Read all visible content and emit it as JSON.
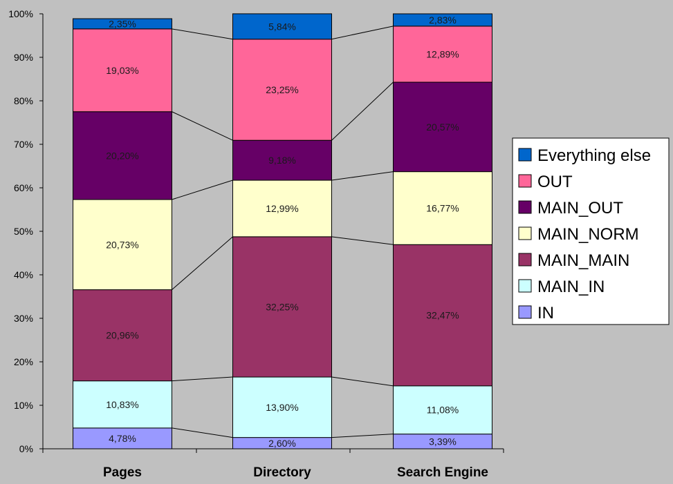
{
  "chart_data": {
    "type": "bar",
    "stacked": true,
    "normalized": true,
    "categories": [
      "Pages",
      "Directory",
      "Search Engine"
    ],
    "y_ticks": [
      "0%",
      "10%",
      "20%",
      "30%",
      "40%",
      "50%",
      "60%",
      "70%",
      "80%",
      "90%",
      "100%"
    ],
    "ylim": [
      0,
      100
    ],
    "series": [
      {
        "name": "IN",
        "color": "#9999ff",
        "values": [
          4.78,
          2.6,
          3.39
        ],
        "labels": [
          "4,78%",
          "2,60%",
          "3,39%"
        ]
      },
      {
        "name": "MAIN_IN",
        "color": "#ccffff",
        "values": [
          10.83,
          13.9,
          11.08
        ],
        "labels": [
          "10,83%",
          "13,90%",
          "11,08%"
        ]
      },
      {
        "name": "MAIN_MAIN",
        "color": "#993366",
        "values": [
          20.96,
          32.25,
          32.47
        ],
        "labels": [
          "20,96%",
          "32,25%",
          "32,47%"
        ]
      },
      {
        "name": "MAIN_NORM",
        "color": "#ffffcc",
        "values": [
          20.73,
          12.99,
          16.77
        ],
        "labels": [
          "20,73%",
          "12,99%",
          "16,77%"
        ]
      },
      {
        "name": "MAIN_OUT",
        "color": "#660066",
        "values": [
          20.2,
          9.18,
          20.57
        ],
        "labels": [
          "20,20%",
          "9,18%",
          "20,57%"
        ]
      },
      {
        "name": "OUT",
        "color": "#ff6699",
        "values": [
          19.03,
          23.25,
          12.89
        ],
        "labels": [
          "19,03%",
          "23,25%",
          "12,89%"
        ]
      },
      {
        "name": "Everything else",
        "color": "#0066cc",
        "values": [
          2.35,
          5.84,
          2.83
        ],
        "labels": [
          "2,35%",
          "5,84%",
          "2,83%"
        ]
      }
    ],
    "legend_order": [
      "Everything else",
      "OUT",
      "MAIN_OUT",
      "MAIN_NORM",
      "MAIN_MAIN",
      "MAIN_IN",
      "IN"
    ],
    "series_lines": true,
    "grid": false,
    "legend_position": "right"
  }
}
